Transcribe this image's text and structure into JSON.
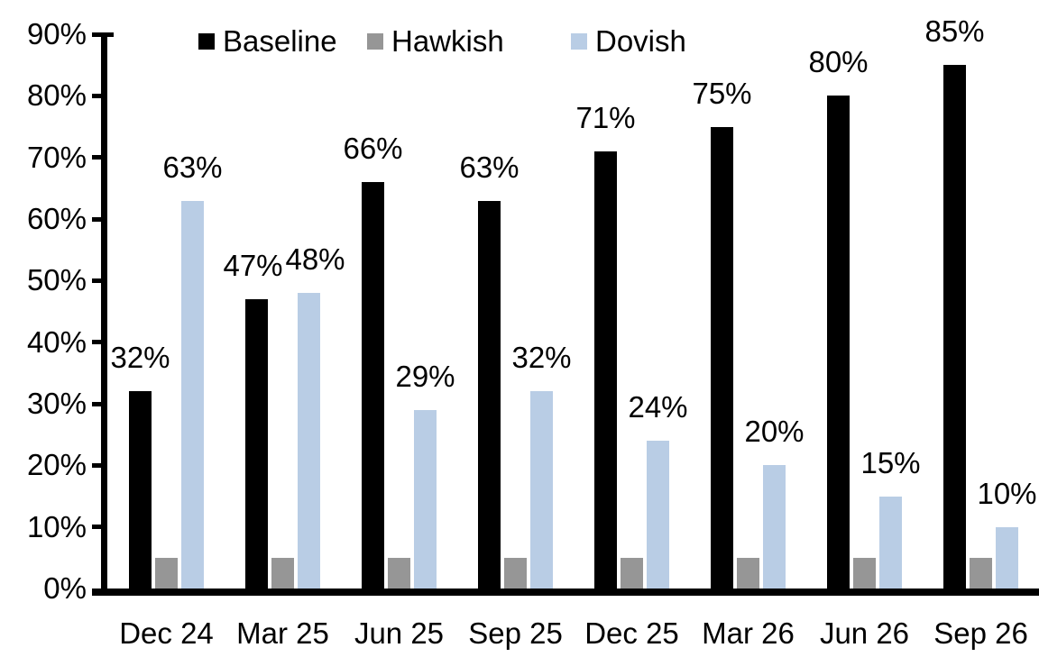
{
  "chart_data": {
    "type": "bar",
    "title": "",
    "xlabel": "",
    "ylabel": "",
    "grid": false,
    "legend_position": "top",
    "ylim": [
      0,
      90
    ],
    "ytick_step": 10,
    "ytick_labels": [
      "0%",
      "10%",
      "20%",
      "30%",
      "40%",
      "50%",
      "60%",
      "70%",
      "80%",
      "90%"
    ],
    "categories": [
      "Dec 24",
      "Mar 25",
      "Jun 25",
      "Sep 25",
      "Dec 25",
      "Mar 26",
      "Jun 26",
      "Sep 26"
    ],
    "series": [
      {
        "name": "Baseline",
        "color": "#000000",
        "values": [
          32,
          47,
          66,
          63,
          71,
          75,
          80,
          85
        ],
        "data_labels": [
          "32%",
          "47%",
          "66%",
          "63%",
          "71%",
          "75%",
          "80%",
          "85%"
        ],
        "label_dx": [
          0,
          -4,
          0,
          0,
          0,
          0,
          0,
          0
        ]
      },
      {
        "name": "Hawkish",
        "color": "#969696",
        "values": [
          5,
          5,
          5,
          5,
          5,
          5,
          5,
          5
        ],
        "data_labels": null,
        "label_dx": null
      },
      {
        "name": "Dovish",
        "color": "#B9CDE5",
        "values": [
          63,
          48,
          29,
          32,
          24,
          20,
          15,
          10
        ],
        "data_labels": [
          "63%",
          "48%",
          "29%",
          "32%",
          "24%",
          "20%",
          "15%",
          "10%"
        ],
        "label_dx": [
          0,
          7,
          0,
          0,
          0,
          0,
          0,
          0
        ]
      }
    ]
  },
  "legend": {
    "items": [
      {
        "label": "Baseline",
        "color": "#000000"
      },
      {
        "label": "Hawkish",
        "color": "#969696"
      },
      {
        "label": "Dovish",
        "color": "#B9CDE5"
      }
    ]
  }
}
